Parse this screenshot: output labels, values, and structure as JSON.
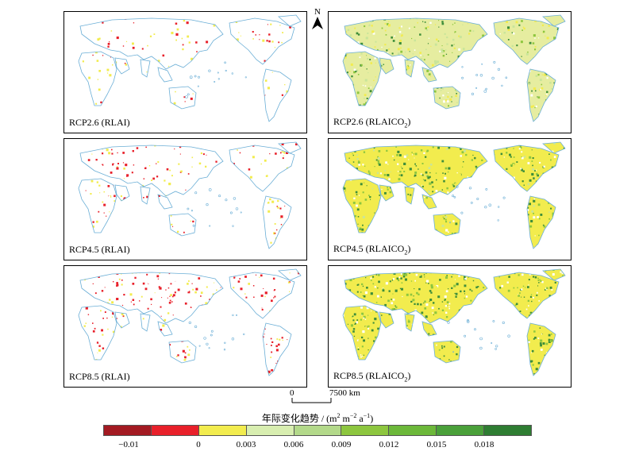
{
  "panels": [
    {
      "id": "p1",
      "label": "RCP2.6 (RLAI)",
      "scenario": "RCP2.6",
      "variable": "RLAI"
    },
    {
      "id": "p2",
      "label_main": "RCP2.6 (RLAICO",
      "label_sub": "2",
      "label_end": ")",
      "scenario": "RCP2.6",
      "variable": "RLAICO2"
    },
    {
      "id": "p3",
      "label": "RCP4.5 (RLAI)",
      "scenario": "RCP4.5",
      "variable": "RLAI"
    },
    {
      "id": "p4",
      "label_main": "RCP4.5 (RLAICO",
      "label_sub": "2",
      "label_end": ")",
      "scenario": "RCP4.5",
      "variable": "RLAICO2"
    },
    {
      "id": "p5",
      "label": "RCP8.5 (RLAI)",
      "scenario": "RCP8.5",
      "variable": "RLAI"
    },
    {
      "id": "p6",
      "label_main": "RCP8.5 (RLAICO",
      "label_sub": "2",
      "label_end": ")",
      "scenario": "RCP8.5",
      "variable": "RLAICO2"
    }
  ],
  "north_arrow": {
    "letter": "N"
  },
  "scale_bar": {
    "start": "0",
    "end": "7500 km"
  },
  "legend": {
    "title_main": "年际变化趋势 / (m",
    "title_sup1": "2",
    "title_mid": " m",
    "title_sup2": "−2",
    "title_mid2": " a",
    "title_sup3": "−1",
    "title_end": ")",
    "labels": [
      "−0.01",
      "0",
      "0.003",
      "0.006",
      "0.009",
      "0.012",
      "0.015",
      "0.018"
    ],
    "colors": [
      "#a31a22",
      "#e8202a",
      "#f2ec4e",
      "#d8eeb0",
      "#b3d98a",
      "#8dc63f",
      "#6cb83a",
      "#4aa03a",
      "#2e7d32"
    ]
  },
  "map_colors": {
    "coast": "#6aaed6",
    "red": "#e8202a",
    "yellow": "#f2ec4e",
    "lightgreen": "#c9e59a",
    "green": "#8dc63f",
    "darkgreen": "#3e8e3a"
  }
}
